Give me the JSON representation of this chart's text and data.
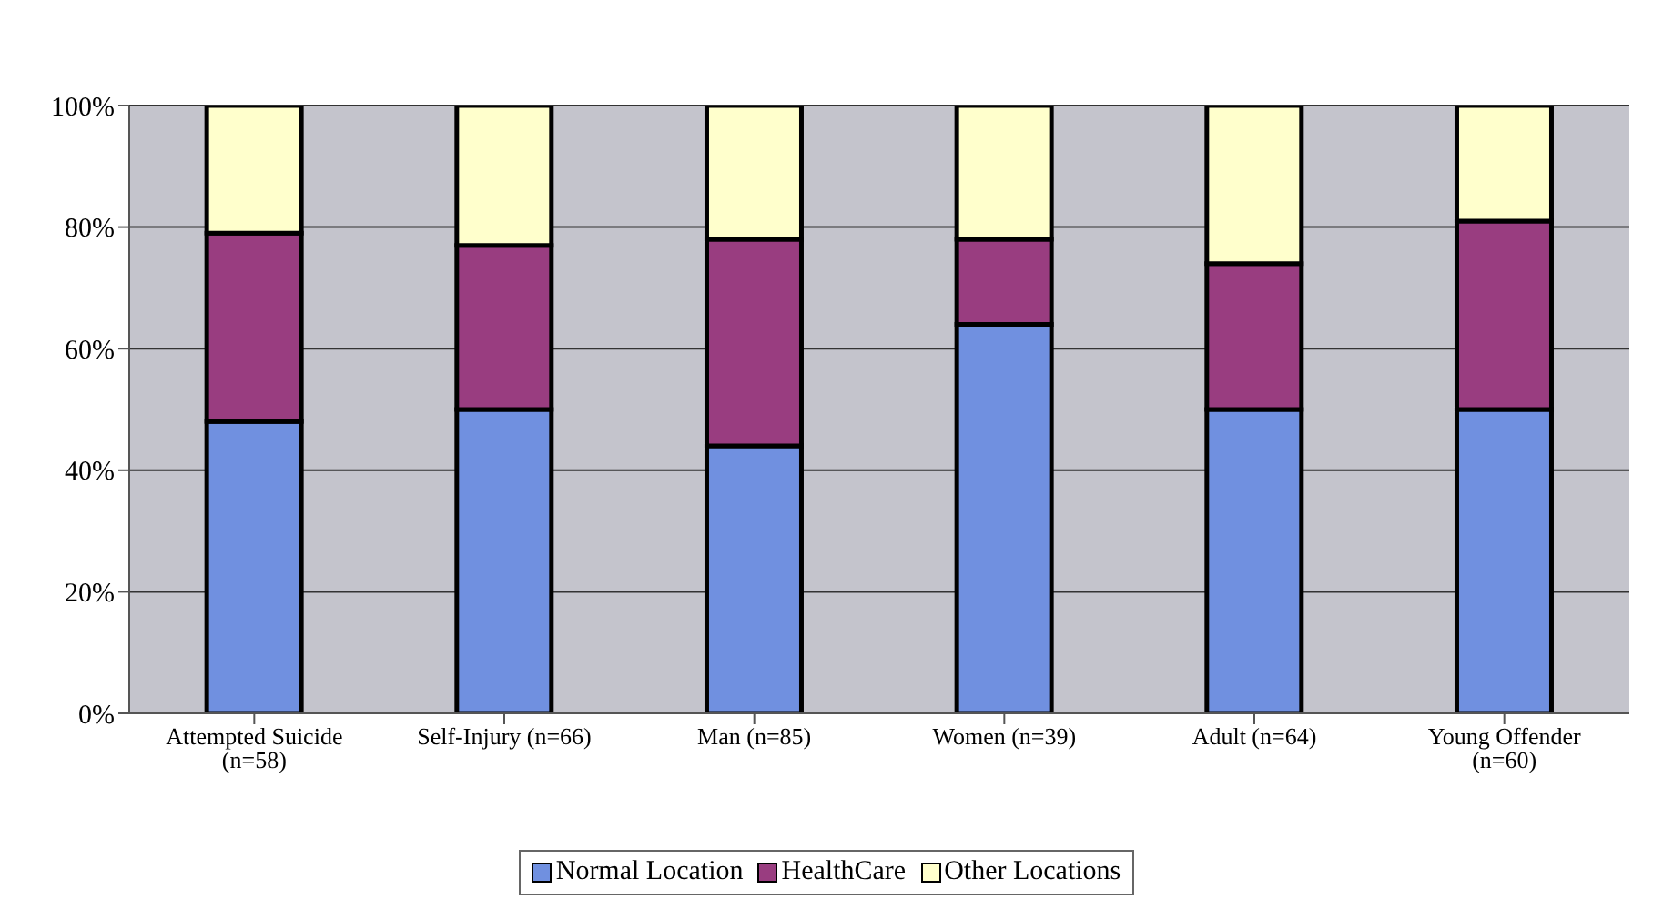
{
  "chart_data": {
    "type": "bar",
    "stacked": true,
    "categories": [
      "Attempted Suicide (n=58)",
      "Self-Injury (n=66)",
      "Man (n=85)",
      "Women (n=39)",
      "Adult (n=64)",
      "Young Offender (n=60)"
    ],
    "series": [
      {
        "name": "Normal Location",
        "color": "#7090e0",
        "values": [
          48,
          50,
          44,
          64,
          50,
          50
        ]
      },
      {
        "name": "HealthCare",
        "color": "#993d80",
        "values": [
          31,
          27,
          34,
          14,
          24,
          31
        ]
      },
      {
        "name": "Other Locations",
        "color": "#ffffcc",
        "values": [
          21,
          23,
          22,
          22,
          26,
          19
        ]
      }
    ],
    "ylim": [
      0,
      100
    ],
    "yticks": [
      {
        "value": 0,
        "label": "0%"
      },
      {
        "value": 20,
        "label": "20%"
      },
      {
        "value": 40,
        "label": "40%"
      },
      {
        "value": 60,
        "label": "60%"
      },
      {
        "value": 80,
        "label": "80%"
      },
      {
        "value": 100,
        "label": "100%"
      }
    ],
    "grid": "y",
    "legend": "bottom"
  }
}
